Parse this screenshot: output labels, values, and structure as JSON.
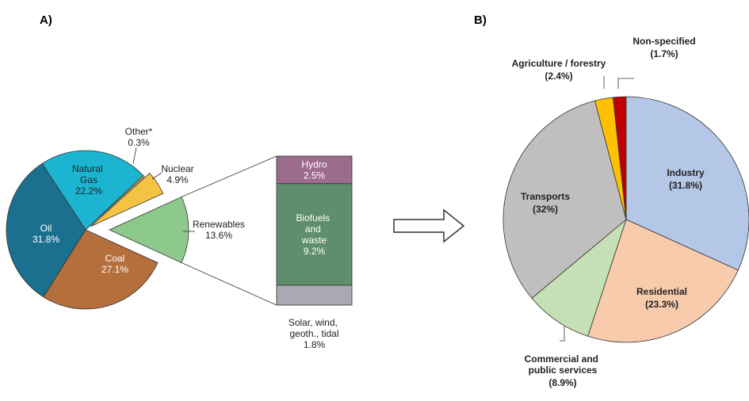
{
  "chart_data": [
    {
      "type": "pie",
      "title": "A)",
      "categories": [
        "Renewables",
        "Coal",
        "Oil",
        "Natural\nGas",
        "Other*",
        "Nuclear"
      ],
      "values": [
        13.6,
        27.1,
        31.8,
        22.2,
        0.3,
        4.9
      ],
      "value_labels": [
        "13.6%",
        "27.1%",
        "31.8%",
        "22.2%",
        "0.3%",
        "4.9%"
      ],
      "colors": [
        "#8cc98b",
        "#b46f3d",
        "#1b7090",
        "#1bb5d2",
        "#f5c342",
        "#f5c342"
      ],
      "breakdown": {
        "categories": [
          "Hydro",
          "Biofuels\nand\nwaste",
          "Solar, wind,\ngeoth., tidal"
        ],
        "values": [
          2.5,
          9.2,
          1.8
        ],
        "value_labels": [
          "2.5%",
          "9.2%",
          "1.8%"
        ],
        "colors": [
          "#9c6b8d",
          "#5e8e6b",
          "#a9a9b1"
        ]
      }
    },
    {
      "type": "pie",
      "title": "B)",
      "categories": [
        "Industry",
        "Residential",
        "Commercial and\npublic services",
        "Transports",
        "Agriculture / forestry",
        "Non-specified"
      ],
      "values": [
        31.8,
        23.3,
        8.9,
        32,
        2.4,
        1.7
      ],
      "value_labels": [
        "(31.8%)",
        "(23.3%)",
        "(8.9%)",
        "(32%)",
        "(2.4%)",
        "(1.7%)"
      ],
      "colors": [
        "#b4c7e7",
        "#f8cbad",
        "#c5e0b4",
        "#bfbfbf",
        "#ffc000",
        "#c00000"
      ]
    }
  ]
}
